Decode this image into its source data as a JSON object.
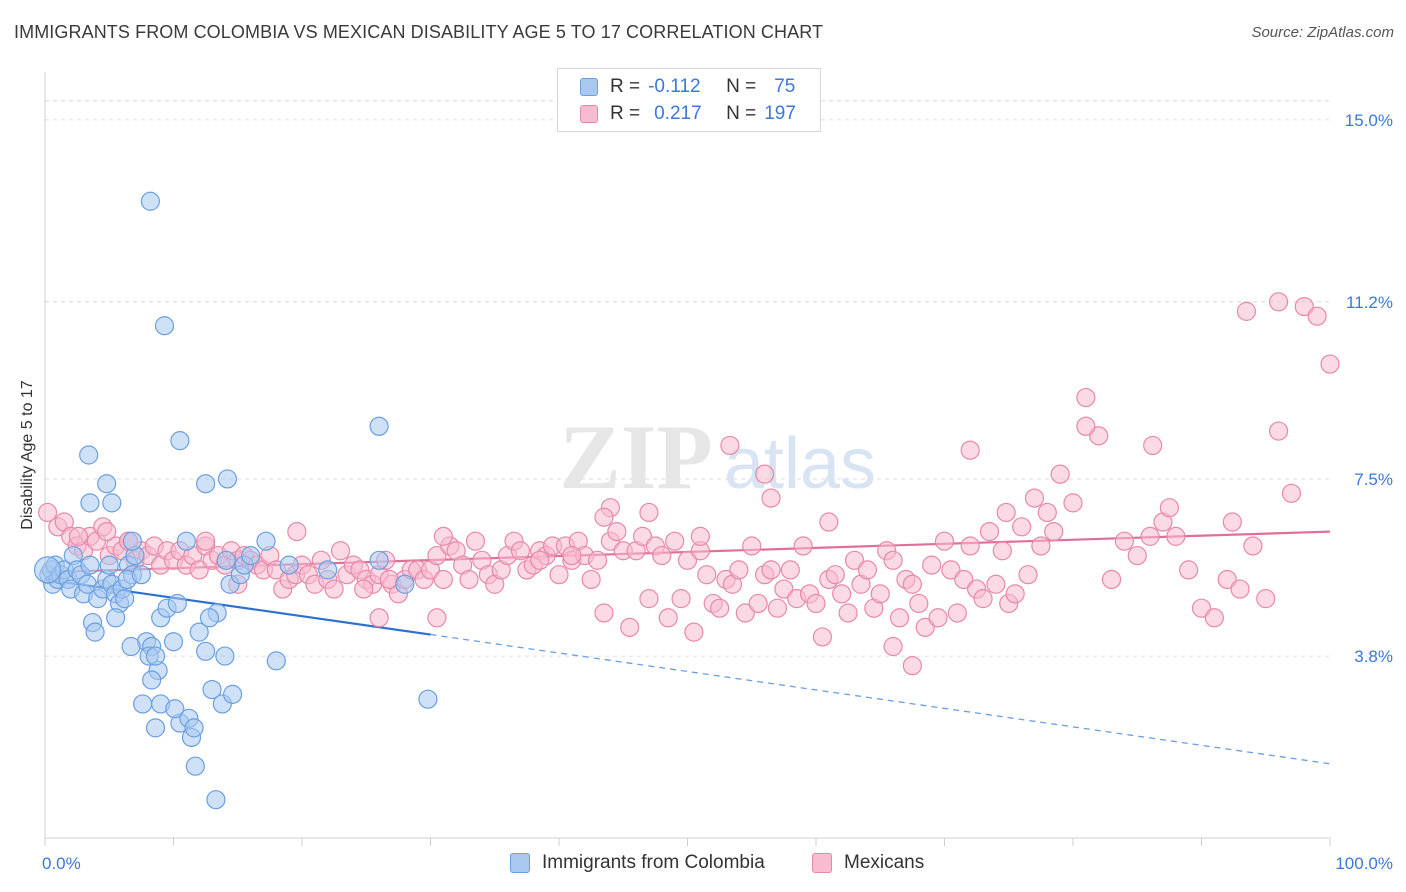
{
  "title": "IMMIGRANTS FROM COLOMBIA VS MEXICAN DISABILITY AGE 5 TO 17 CORRELATION CHART",
  "source": "Source: ZipAtlas.com",
  "watermark": {
    "zip": "ZIP",
    "atlas": "atlas"
  },
  "legend": {
    "rows": [
      {
        "r_label": "R =",
        "r_value": "-0.112",
        "n_label": "N =",
        "n_value": "75",
        "color": "#a8c8f0",
        "border": "#6a9fe0"
      },
      {
        "r_label": "R =",
        "r_value": "0.217",
        "n_label": "N =",
        "n_value": "197",
        "color": "#f7bcd0",
        "border": "#e888a8"
      }
    ]
  },
  "bottom_legend": [
    {
      "label": "Immigrants from Colombia",
      "color": "#a8c8f0",
      "border": "#6a9fe0"
    },
    {
      "label": "Mexicans",
      "color": "#f7bcd0",
      "border": "#e888a8"
    }
  ],
  "chart_data": {
    "type": "scatter",
    "title": "IMMIGRANTS FROM COLOMBIA VS MEXICAN DISABILITY AGE 5 TO 17 CORRELATION CHART",
    "xlabel": "",
    "ylabel": "Disability Age 5 to 17",
    "xlim": [
      0,
      100
    ],
    "ylim": [
      0,
      16
    ],
    "x_tick_labels": [
      "0.0%",
      "100.0%"
    ],
    "y_ticks": [
      3.8,
      7.5,
      11.2,
      15.0
    ],
    "y_tick_labels": [
      "3.8%",
      "7.5%",
      "11.2%",
      "15.0%"
    ],
    "grid": true,
    "legend_position": "top-center",
    "series": [
      {
        "name": "Immigrants from Colombia",
        "color": "#6a9fe0",
        "fill": "#a8c8f0",
        "trend": {
          "x0": 0,
          "y0": 5.4,
          "x1": 30,
          "y1": 4.25,
          "extend_to": 100,
          "extend_y": 1.55
        },
        "points": [
          [
            0.3,
            5.5
          ],
          [
            0.5,
            5.6
          ],
          [
            0.6,
            5.3
          ],
          [
            0.8,
            5.7
          ],
          [
            1.0,
            5.4
          ],
          [
            1.2,
            5.5
          ],
          [
            1.5,
            5.6
          ],
          [
            1.8,
            5.4
          ],
          [
            2.0,
            5.2
          ],
          [
            2.2,
            5.9
          ],
          [
            2.5,
            5.6
          ],
          [
            2.8,
            5.5
          ],
          [
            3.0,
            5.1
          ],
          [
            3.3,
            5.3
          ],
          [
            3.5,
            5.7
          ],
          [
            3.7,
            4.5
          ],
          [
            3.9,
            4.3
          ],
          [
            4.1,
            5.0
          ],
          [
            4.5,
            5.2
          ],
          [
            4.8,
            5.4
          ],
          [
            5.0,
            5.7
          ],
          [
            5.2,
            5.3
          ],
          [
            5.5,
            5.1
          ],
          [
            5.8,
            4.9
          ],
          [
            6.0,
            5.2
          ],
          [
            6.2,
            5.0
          ],
          [
            6.5,
            5.7
          ],
          [
            6.8,
            5.5
          ],
          [
            3.4,
            8.0
          ],
          [
            3.5,
            7.0
          ],
          [
            4.8,
            7.4
          ],
          [
            5.2,
            7.0
          ],
          [
            5.5,
            4.6
          ],
          [
            6.4,
            5.4
          ],
          [
            7.0,
            5.9
          ],
          [
            6.8,
            6.2
          ],
          [
            7.5,
            5.5
          ],
          [
            7.9,
            4.1
          ],
          [
            6.7,
            4.0
          ],
          [
            8.3,
            4.0
          ],
          [
            8.1,
            3.8
          ],
          [
            8.8,
            3.5
          ],
          [
            8.3,
            3.3
          ],
          [
            9.0,
            4.6
          ],
          [
            8.6,
            3.8
          ],
          [
            9.5,
            4.8
          ],
          [
            10.0,
            4.1
          ],
          [
            10.3,
            4.9
          ],
          [
            7.6,
            2.8
          ],
          [
            9.0,
            2.8
          ],
          [
            10.5,
            2.4
          ],
          [
            10.1,
            2.7
          ],
          [
            11.2,
            2.5
          ],
          [
            11.4,
            2.1
          ],
          [
            11.6,
            2.3
          ],
          [
            12.0,
            4.3
          ],
          [
            12.5,
            3.9
          ],
          [
            13.0,
            3.1
          ],
          [
            13.4,
            4.7
          ],
          [
            13.8,
            2.8
          ],
          [
            14.0,
            3.8
          ],
          [
            14.1,
            5.8
          ],
          [
            14.4,
            5.3
          ],
          [
            15.2,
            5.5
          ],
          [
            15.5,
            5.7
          ],
          [
            16.0,
            5.9
          ],
          [
            17.2,
            6.2
          ],
          [
            18.0,
            3.7
          ],
          [
            11.0,
            6.2
          ],
          [
            12.8,
            4.6
          ],
          [
            14.6,
            3.0
          ],
          [
            19.0,
            5.7
          ],
          [
            22.0,
            5.6
          ],
          [
            26.0,
            5.8
          ],
          [
            28.0,
            5.3
          ],
          [
            10.5,
            8.3
          ],
          [
            12.5,
            7.4
          ],
          [
            14.2,
            7.5
          ],
          [
            9.3,
            10.7
          ],
          [
            8.2,
            13.3
          ],
          [
            26.0,
            8.6
          ],
          [
            29.8,
            2.9
          ],
          [
            13.3,
            0.8
          ],
          [
            11.7,
            1.5
          ],
          [
            8.6,
            2.3
          ]
        ]
      },
      {
        "name": "Mexicans",
        "color": "#e888a8",
        "fill": "#f7bcd0",
        "trend": {
          "x0": 0,
          "y0": 5.55,
          "x1": 100,
          "y1": 6.4
        },
        "points": [
          [
            0.2,
            6.8
          ],
          [
            1.0,
            6.5
          ],
          [
            1.5,
            6.6
          ],
          [
            2.0,
            6.3
          ],
          [
            2.5,
            6.1
          ],
          [
            3.0,
            6.0
          ],
          [
            3.5,
            6.3
          ],
          [
            4.0,
            6.2
          ],
          [
            4.5,
            6.5
          ],
          [
            5.0,
            5.9
          ],
          [
            5.5,
            6.1
          ],
          [
            6.0,
            6.0
          ],
          [
            6.5,
            6.2
          ],
          [
            7.0,
            5.8
          ],
          [
            7.5,
            6.0
          ],
          [
            8.0,
            5.9
          ],
          [
            8.5,
            6.1
          ],
          [
            9.0,
            5.7
          ],
          [
            9.5,
            6.0
          ],
          [
            10.0,
            5.8
          ],
          [
            10.5,
            6.0
          ],
          [
            11.0,
            5.7
          ],
          [
            11.5,
            5.9
          ],
          [
            12.0,
            5.6
          ],
          [
            12.5,
            6.1
          ],
          [
            13.0,
            5.8
          ],
          [
            13.5,
            5.9
          ],
          [
            14.0,
            5.7
          ],
          [
            14.5,
            6.0
          ],
          [
            15.0,
            5.8
          ],
          [
            15.5,
            5.9
          ],
          [
            16.0,
            5.8
          ],
          [
            16.5,
            5.7
          ],
          [
            17.0,
            5.6
          ],
          [
            17.5,
            5.9
          ],
          [
            18.0,
            5.6
          ],
          [
            18.5,
            5.2
          ],
          [
            19.0,
            5.4
          ],
          [
            19.5,
            5.5
          ],
          [
            20.0,
            5.7
          ],
          [
            20.5,
            5.5
          ],
          [
            21.0,
            5.3
          ],
          [
            21.5,
            5.8
          ],
          [
            22.0,
            5.4
          ],
          [
            22.5,
            5.2
          ],
          [
            23.0,
            6.0
          ],
          [
            23.5,
            5.5
          ],
          [
            24.0,
            5.7
          ],
          [
            24.5,
            5.6
          ],
          [
            25.0,
            5.4
          ],
          [
            25.5,
            5.3
          ],
          [
            26.0,
            5.5
          ],
          [
            26.5,
            5.8
          ],
          [
            27.0,
            5.3
          ],
          [
            27.5,
            5.1
          ],
          [
            28.0,
            5.4
          ],
          [
            28.5,
            5.6
          ],
          [
            29.0,
            5.6
          ],
          [
            29.5,
            5.4
          ],
          [
            30.0,
            5.6
          ],
          [
            30.5,
            5.9
          ],
          [
            31.0,
            5.4
          ],
          [
            31.5,
            6.1
          ],
          [
            32.0,
            6.0
          ],
          [
            32.5,
            5.7
          ],
          [
            33.0,
            5.4
          ],
          [
            33.5,
            6.2
          ],
          [
            34.0,
            5.8
          ],
          [
            34.5,
            5.5
          ],
          [
            35.0,
            5.3
          ],
          [
            35.5,
            5.6
          ],
          [
            36.0,
            5.9
          ],
          [
            36.5,
            6.2
          ],
          [
            37.0,
            6.0
          ],
          [
            37.5,
            5.6
          ],
          [
            38.0,
            5.7
          ],
          [
            38.5,
            6.0
          ],
          [
            39.0,
            5.9
          ],
          [
            39.5,
            6.1
          ],
          [
            40.0,
            5.5
          ],
          [
            40.5,
            6.1
          ],
          [
            41.0,
            5.8
          ],
          [
            41.5,
            6.2
          ],
          [
            42.0,
            5.9
          ],
          [
            42.5,
            5.4
          ],
          [
            43.0,
            5.8
          ],
          [
            43.5,
            4.7
          ],
          [
            44.0,
            6.2
          ],
          [
            44.5,
            6.4
          ],
          [
            45.0,
            6.0
          ],
          [
            45.5,
            4.4
          ],
          [
            46.0,
            6.0
          ],
          [
            46.5,
            6.3
          ],
          [
            47.0,
            5.0
          ],
          [
            47.5,
            6.1
          ],
          [
            48.0,
            5.9
          ],
          [
            48.5,
            4.6
          ],
          [
            49.0,
            6.2
          ],
          [
            49.5,
            5.0
          ],
          [
            50.0,
            5.8
          ],
          [
            50.5,
            4.3
          ],
          [
            51.0,
            6.0
          ],
          [
            51.5,
            5.5
          ],
          [
            52.0,
            4.9
          ],
          [
            52.5,
            4.8
          ],
          [
            53.0,
            5.4
          ],
          [
            53.5,
            5.3
          ],
          [
            54.0,
            5.6
          ],
          [
            54.5,
            4.7
          ],
          [
            55.0,
            6.1
          ],
          [
            55.5,
            4.9
          ],
          [
            56.0,
            5.5
          ],
          [
            56.5,
            5.6
          ],
          [
            57.0,
            4.8
          ],
          [
            57.5,
            5.2
          ],
          [
            58.0,
            5.6
          ],
          [
            58.5,
            5.0
          ],
          [
            59.0,
            6.1
          ],
          [
            59.5,
            5.1
          ],
          [
            60.0,
            4.9
          ],
          [
            60.5,
            4.2
          ],
          [
            61.0,
            5.4
          ],
          [
            61.5,
            5.5
          ],
          [
            62.0,
            5.1
          ],
          [
            62.5,
            4.7
          ],
          [
            63.0,
            5.8
          ],
          [
            63.5,
            5.3
          ],
          [
            64.0,
            5.6
          ],
          [
            64.5,
            4.8
          ],
          [
            65.0,
            5.1
          ],
          [
            65.5,
            6.0
          ],
          [
            66.0,
            5.8
          ],
          [
            66.5,
            4.6
          ],
          [
            67.0,
            5.4
          ],
          [
            67.5,
            5.3
          ],
          [
            68.0,
            4.9
          ],
          [
            68.5,
            4.4
          ],
          [
            69.0,
            5.7
          ],
          [
            69.5,
            4.6
          ],
          [
            70.0,
            6.2
          ],
          [
            70.5,
            5.6
          ],
          [
            71.0,
            4.7
          ],
          [
            71.5,
            5.4
          ],
          [
            72.0,
            6.1
          ],
          [
            72.5,
            5.2
          ],
          [
            73.0,
            5.0
          ],
          [
            73.5,
            6.4
          ],
          [
            74.0,
            5.3
          ],
          [
            74.5,
            6.0
          ],
          [
            75.0,
            4.9
          ],
          [
            75.5,
            5.1
          ],
          [
            76.0,
            6.5
          ],
          [
            76.5,
            5.5
          ],
          [
            77.0,
            7.1
          ],
          [
            77.5,
            6.1
          ],
          [
            78.0,
            6.8
          ],
          [
            78.5,
            6.4
          ],
          [
            79.0,
            7.6
          ],
          [
            80.0,
            7.0
          ],
          [
            81.0,
            9.2
          ],
          [
            82.0,
            8.4
          ],
          [
            83.0,
            5.4
          ],
          [
            84.0,
            6.2
          ],
          [
            85.0,
            5.9
          ],
          [
            86.0,
            6.3
          ],
          [
            87.0,
            6.6
          ],
          [
            88.0,
            6.3
          ],
          [
            89.0,
            5.6
          ],
          [
            90.0,
            4.8
          ],
          [
            91.0,
            4.6
          ],
          [
            92.0,
            5.4
          ],
          [
            93.0,
            5.2
          ],
          [
            94.0,
            6.1
          ],
          [
            95.0,
            5.0
          ],
          [
            96.0,
            8.5
          ],
          [
            97.0,
            7.2
          ],
          [
            98.0,
            11.1
          ],
          [
            99.0,
            10.9
          ],
          [
            100.0,
            9.9
          ],
          [
            72.0,
            8.1
          ],
          [
            74.8,
            6.8
          ],
          [
            53.3,
            8.2
          ],
          [
            56.0,
            7.6
          ],
          [
            56.5,
            7.1
          ],
          [
            44.0,
            6.9
          ],
          [
            47.0,
            6.8
          ],
          [
            43.5,
            6.7
          ],
          [
            51.0,
            6.3
          ],
          [
            61.0,
            6.6
          ],
          [
            66.0,
            4.0
          ],
          [
            67.5,
            3.6
          ],
          [
            81.0,
            8.6
          ],
          [
            86.2,
            8.2
          ],
          [
            93.5,
            11.0
          ],
          [
            96.0,
            11.2
          ],
          [
            92.4,
            6.6
          ],
          [
            87.5,
            6.9
          ],
          [
            31.0,
            6.3
          ],
          [
            19.6,
            6.4
          ],
          [
            12.5,
            6.2
          ],
          [
            6.5,
            6.2
          ],
          [
            4.8,
            6.4
          ],
          [
            2.6,
            6.3
          ],
          [
            15.0,
            5.3
          ],
          [
            24.8,
            5.2
          ],
          [
            26.8,
            5.4
          ],
          [
            38.5,
            5.8
          ],
          [
            41.0,
            5.9
          ],
          [
            30.5,
            4.6
          ],
          [
            26.0,
            4.6
          ]
        ]
      }
    ]
  }
}
